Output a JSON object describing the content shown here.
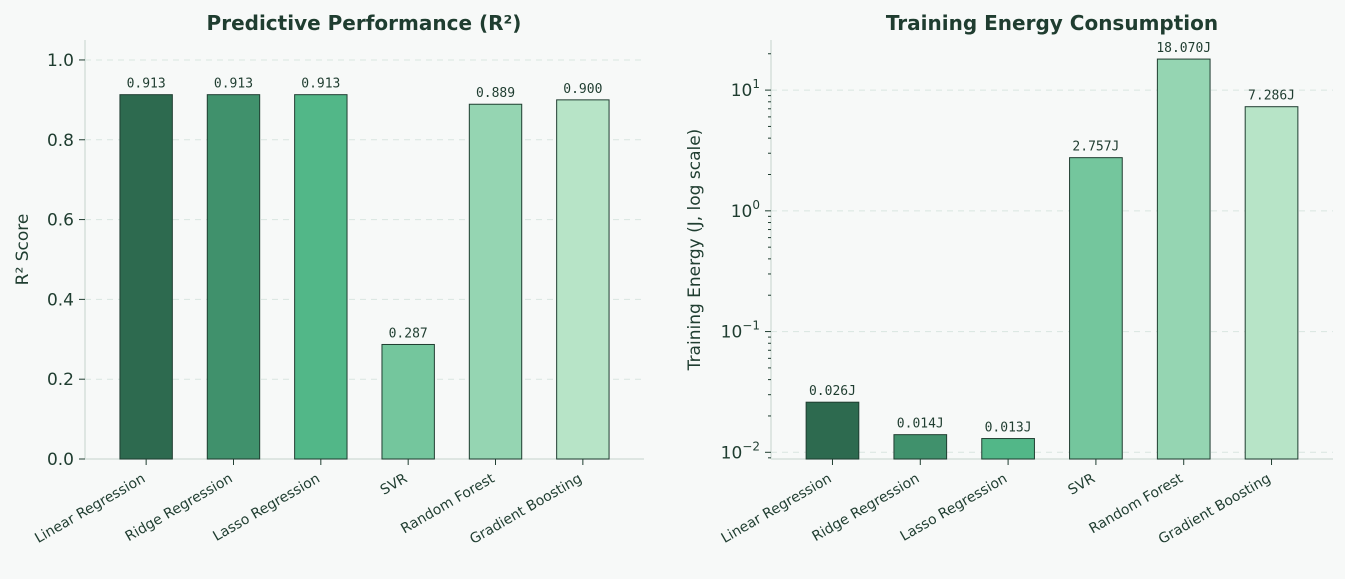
{
  "chart_data": [
    {
      "type": "bar",
      "title": "Predictive Performance (R²)",
      "ylabel": "R² Score",
      "xlabel": "",
      "categories": [
        "Linear Regression",
        "Ridge Regression",
        "Lasso Regression",
        "SVR",
        "Random Forest",
        "Gradient Boosting"
      ],
      "values": [
        0.913,
        0.913,
        0.913,
        0.287,
        0.889,
        0.9
      ],
      "value_labels": [
        "0.913",
        "0.913",
        "0.913",
        "0.287",
        "0.889",
        "0.900"
      ],
      "ylim": [
        0,
        1.05
      ],
      "y_scale": "linear",
      "yticks": [
        0.0,
        0.2,
        0.4,
        0.6,
        0.8,
        1.0
      ],
      "ytick_labels": [
        "0.0",
        "0.2",
        "0.4",
        "0.6",
        "0.8",
        "1.0"
      ],
      "grid": "y",
      "colors": [
        "#2d6a4f",
        "#40916c",
        "#52b788",
        "#74c69d",
        "#95d5b2",
        "#b7e4c7"
      ]
    },
    {
      "type": "bar",
      "title": "Training Energy Consumption",
      "ylabel": "Training Energy (J, log scale)",
      "xlabel": "",
      "categories": [
        "Linear Regression",
        "Ridge Regression",
        "Lasso Regression",
        "SVR",
        "Random Forest",
        "Gradient Boosting"
      ],
      "values": [
        0.026,
        0.014,
        0.013,
        2.757,
        18.07,
        7.286
      ],
      "value_labels": [
        "0.026J",
        "0.014J",
        "0.013J",
        "2.757J",
        "18.070J",
        "7.286J"
      ],
      "ylim": [
        0.0088,
        26
      ],
      "y_scale": "log",
      "yticks": [
        0.01,
        0.1,
        1,
        10
      ],
      "ytick_labels": [
        [
          "10",
          "−2"
        ],
        [
          "10",
          "−1"
        ],
        [
          "10",
          "0"
        ],
        [
          "10",
          "1"
        ]
      ],
      "grid": "y",
      "colors": [
        "#2d6a4f",
        "#40916c",
        "#52b788",
        "#74c69d",
        "#95d5b2",
        "#b7e4c7"
      ]
    }
  ]
}
